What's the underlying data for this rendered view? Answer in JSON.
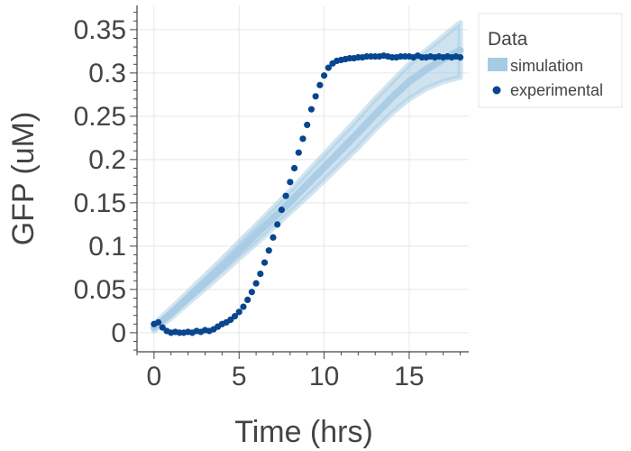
{
  "chart_data": {
    "type": "line",
    "title": "",
    "xlabel": "Time (hrs)",
    "ylabel": "GFP (uM)",
    "xlim": [
      -1,
      18.5
    ],
    "ylim": [
      -0.022,
      0.378
    ],
    "x_ticks": [
      0,
      5,
      10,
      15
    ],
    "x_tick_labels": [
      "0",
      "5",
      "10",
      "15"
    ],
    "y_ticks": [
      0,
      0.05,
      0.1,
      0.15,
      0.2,
      0.25,
      0.3,
      0.35
    ],
    "y_tick_labels": [
      "0",
      "0.05",
      "0.1",
      "0.15",
      "0.2",
      "0.25",
      "0.3",
      "0.35"
    ],
    "grid": true,
    "legend": {
      "title": "Data",
      "position": "top-right-outside",
      "entries": [
        "simulation",
        "experimental"
      ]
    },
    "series": [
      {
        "name": "simulation",
        "style": "band",
        "color": "#a6cbe3",
        "x": [
          0,
          1,
          2,
          3,
          4,
          5,
          6,
          7,
          8,
          9,
          10,
          11,
          12,
          13,
          14,
          15,
          16,
          17,
          18
        ],
        "y_low": [
          0.002,
          0.017,
          0.034,
          0.051,
          0.068,
          0.086,
          0.103,
          0.121,
          0.139,
          0.157,
          0.176,
          0.195,
          0.214,
          0.235,
          0.254,
          0.27,
          0.282,
          0.29,
          0.295
        ],
        "y_high": [
          0.01,
          0.028,
          0.047,
          0.066,
          0.085,
          0.105,
          0.124,
          0.144,
          0.164,
          0.185,
          0.206,
          0.227,
          0.248,
          0.27,
          0.29,
          0.31,
          0.326,
          0.342,
          0.358
        ],
        "y": [
          0.006,
          0.022,
          0.04,
          0.058,
          0.076,
          0.095,
          0.114,
          0.132,
          0.151,
          0.171,
          0.191,
          0.211,
          0.231,
          0.252,
          0.272,
          0.29,
          0.304,
          0.316,
          0.326
        ]
      },
      {
        "name": "experimental",
        "style": "markers",
        "color": "#08468f",
        "x": [
          0,
          0.25,
          0.5,
          0.75,
          1,
          1.25,
          1.5,
          1.75,
          2,
          2.25,
          2.5,
          2.75,
          3,
          3.25,
          3.5,
          3.75,
          4,
          4.25,
          4.5,
          4.75,
          5,
          5.25,
          5.5,
          5.75,
          6,
          6.25,
          6.5,
          6.75,
          7,
          7.25,
          7.5,
          7.75,
          8,
          8.25,
          8.5,
          8.75,
          9,
          9.25,
          9.5,
          9.75,
          10,
          10.25,
          10.5,
          10.75,
          11,
          11.25,
          11.5,
          11.75,
          12,
          12.25,
          12.5,
          12.75,
          13,
          13.25,
          13.5,
          13.75,
          14,
          14.25,
          14.5,
          14.75,
          15,
          15.25,
          15.5,
          15.75,
          16,
          16.25,
          16.5,
          16.75,
          17,
          17.25,
          17.5,
          17.75,
          18
        ],
        "y": [
          0.01,
          0.012,
          0.006,
          0.002,
          0.0,
          0.001,
          0.0,
          0.0,
          0.001,
          0.0,
          0.002,
          0.001,
          0.003,
          0.002,
          0.004,
          0.007,
          0.01,
          0.012,
          0.015,
          0.019,
          0.024,
          0.03,
          0.038,
          0.047,
          0.057,
          0.068,
          0.081,
          0.095,
          0.11,
          0.125,
          0.142,
          0.158,
          0.174,
          0.19,
          0.208,
          0.224,
          0.24,
          0.258,
          0.273,
          0.286,
          0.297,
          0.306,
          0.311,
          0.314,
          0.315,
          0.316,
          0.317,
          0.317,
          0.318,
          0.318,
          0.319,
          0.319,
          0.319,
          0.319,
          0.32,
          0.319,
          0.318,
          0.318,
          0.319,
          0.319,
          0.319,
          0.318,
          0.32,
          0.318,
          0.318,
          0.319,
          0.318,
          0.319,
          0.318,
          0.319,
          0.318,
          0.319,
          0.318
        ]
      }
    ]
  }
}
